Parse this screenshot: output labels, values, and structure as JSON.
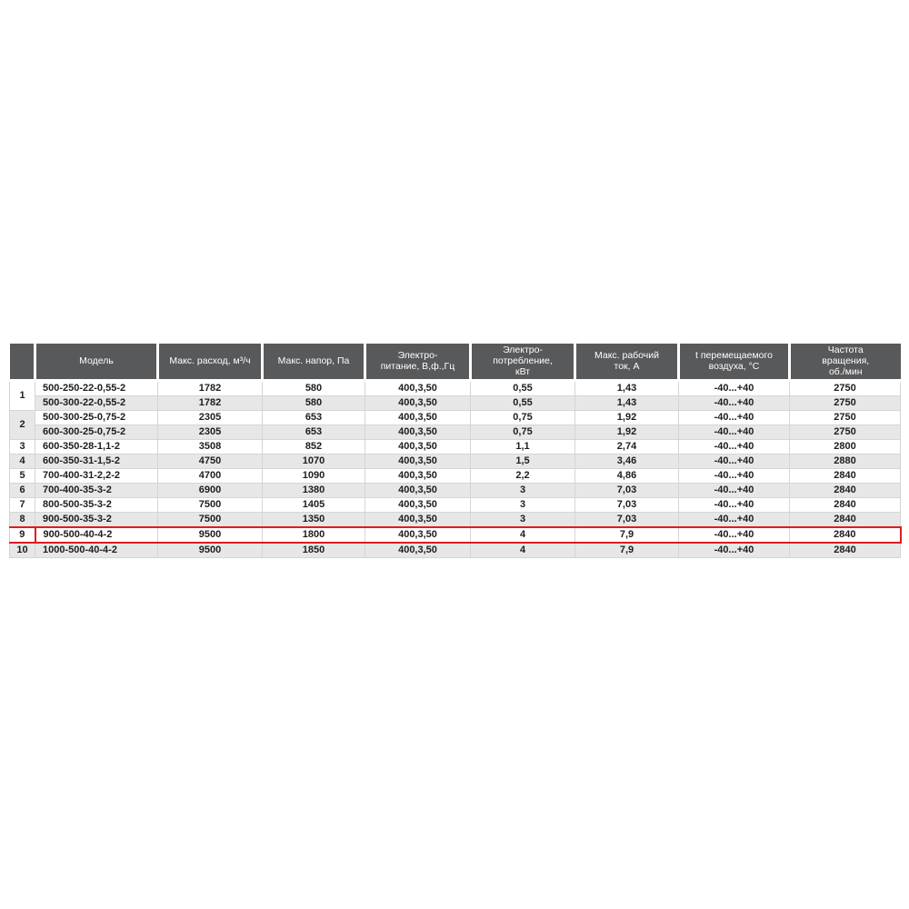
{
  "table": {
    "colors": {
      "header_bg": "#58595b",
      "header_text": "#ffffff",
      "row_alt_bg": "#e7e7e8",
      "grid_line": "#d3d5d6",
      "body_text": "#1d1d1b",
      "highlight_border": "#e01b22",
      "page_bg": "#ffffff"
    },
    "columns": [
      {
        "key": "num",
        "label": ""
      },
      {
        "key": "model",
        "label": "Модель"
      },
      {
        "key": "flow",
        "label": "Макс. расход, м³/ч"
      },
      {
        "key": "pressure",
        "label": "Макс. напор, Па"
      },
      {
        "key": "supply",
        "label": "Электро-\nпитание, В,ф.,Гц"
      },
      {
        "key": "kw",
        "label": "Электро-\nпотребление,\nкВт"
      },
      {
        "key": "amp",
        "label": "Макс. рабочий\nток, А"
      },
      {
        "key": "temp",
        "label": "t перемещаемого\nвоздуха, °С"
      },
      {
        "key": "rpm",
        "label": "Частота\nвращения,\nоб./мин"
      }
    ],
    "rows": [
      {
        "num": "1",
        "num_rowspan": 2,
        "num_shaded": false,
        "shaded": false,
        "highlighted": false,
        "model": "500-250-22-0,55-2",
        "flow": "1782",
        "pressure": "580",
        "supply": "400,3,50",
        "kw": "0,55",
        "amp": "1,43",
        "temp": "-40...+40",
        "rpm": "2750"
      },
      {
        "shaded": true,
        "highlighted": false,
        "model": "500-300-22-0,55-2",
        "flow": "1782",
        "pressure": "580",
        "supply": "400,3,50",
        "kw": "0,55",
        "amp": "1,43",
        "temp": "-40...+40",
        "rpm": "2750"
      },
      {
        "num": "2",
        "num_rowspan": 2,
        "num_shaded": true,
        "shaded": false,
        "highlighted": false,
        "model": "500-300-25-0,75-2",
        "flow": "2305",
        "pressure": "653",
        "supply": "400,3,50",
        "kw": "0,75",
        "amp": "1,92",
        "temp": "-40...+40",
        "rpm": "2750"
      },
      {
        "shaded": true,
        "highlighted": false,
        "model": "600-300-25-0,75-2",
        "flow": "2305",
        "pressure": "653",
        "supply": "400,3,50",
        "kw": "0,75",
        "amp": "1,92",
        "temp": "-40...+40",
        "rpm": "2750"
      },
      {
        "num": "3",
        "shaded": false,
        "highlighted": false,
        "model": "600-350-28-1,1-2",
        "flow": "3508",
        "pressure": "852",
        "supply": "400,3,50",
        "kw": "1,1",
        "amp": "2,74",
        "temp": "-40...+40",
        "rpm": "2800"
      },
      {
        "num": "4",
        "shaded": true,
        "highlighted": false,
        "model": "600-350-31-1,5-2",
        "flow": "4750",
        "pressure": "1070",
        "supply": "400,3,50",
        "kw": "1,5",
        "amp": "3,46",
        "temp": "-40...+40",
        "rpm": "2880"
      },
      {
        "num": "5",
        "shaded": false,
        "highlighted": false,
        "model": "700-400-31-2,2-2",
        "flow": "4700",
        "pressure": "1090",
        "supply": "400,3,50",
        "kw": "2,2",
        "amp": "4,86",
        "temp": "-40...+40",
        "rpm": "2840"
      },
      {
        "num": "6",
        "shaded": true,
        "highlighted": false,
        "model": "700-400-35-3-2",
        "flow": "6900",
        "pressure": "1380",
        "supply": "400,3,50",
        "kw": "3",
        "amp": "7,03",
        "temp": "-40...+40",
        "rpm": "2840"
      },
      {
        "num": "7",
        "shaded": false,
        "highlighted": false,
        "model": "800-500-35-3-2",
        "flow": "7500",
        "pressure": "1405",
        "supply": "400,3,50",
        "kw": "3",
        "amp": "7,03",
        "temp": "-40...+40",
        "rpm": "2840"
      },
      {
        "num": "8",
        "shaded": true,
        "highlighted": false,
        "model": "900-500-35-3-2",
        "flow": "7500",
        "pressure": "1350",
        "supply": "400,3,50",
        "kw": "3",
        "amp": "7,03",
        "temp": "-40...+40",
        "rpm": "2840"
      },
      {
        "num": "9",
        "shaded": false,
        "highlighted": true,
        "model": "900-500-40-4-2",
        "flow": "9500",
        "pressure": "1800",
        "supply": "400,3,50",
        "kw": "4",
        "amp": "7,9",
        "temp": "-40...+40",
        "rpm": "2840"
      },
      {
        "num": "10",
        "shaded": true,
        "highlighted": false,
        "model": "1000-500-40-4-2",
        "flow": "9500",
        "pressure": "1850",
        "supply": "400,3,50",
        "kw": "4",
        "amp": "7,9",
        "temp": "-40...+40",
        "rpm": "2840"
      }
    ]
  }
}
